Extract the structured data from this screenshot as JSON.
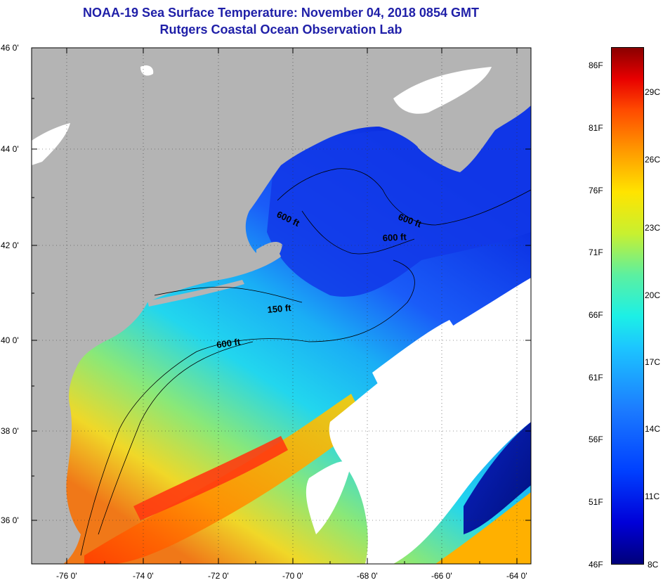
{
  "title": {
    "line1": "NOAA-19 Sea Surface Temperature:  November 04, 2018 0854 GMT",
    "line2": "Rutgers Coastal Ocean Observation Lab"
  },
  "map": {
    "lat_ticks": [
      "46 0'",
      "44 0'",
      "42 0'",
      "40 0'",
      "38 0'",
      "36 0'"
    ],
    "lon_ticks": [
      "-76 0'",
      "-74 0'",
      "-72 0'",
      "-70 0'",
      "-68 0'",
      "-66 0'",
      "-64 0'"
    ],
    "contour_labels": [
      "600 ft",
      "600 ft",
      "600 ft",
      "150 ft",
      "600 ft"
    ],
    "colors": {
      "land": "#b4b4b4",
      "cloud": "#ffffff",
      "cold_water": "#1a3cf0",
      "mid_water": "#20c8f0",
      "warm_water": "#f0e020",
      "hot_water": "#f05a10"
    }
  },
  "colorbar": {
    "fahrenheit": [
      "86F",
      "81F",
      "76F",
      "71F",
      "66F",
      "61F",
      "56F",
      "51F",
      "46F"
    ],
    "celsius": [
      "29C",
      "26C",
      "23C",
      "20C",
      "17C",
      "14C",
      "11C",
      "8C"
    ]
  }
}
